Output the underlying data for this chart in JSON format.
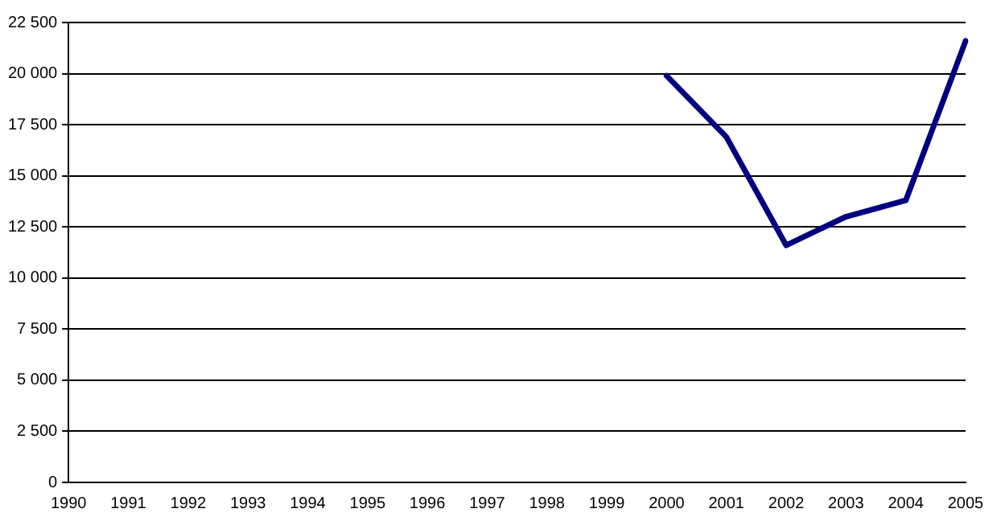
{
  "chart_data": {
    "type": "line",
    "categories": [
      "1990",
      "1991",
      "1992",
      "1993",
      "1994",
      "1995",
      "1996",
      "1997",
      "1998",
      "1999",
      "2000",
      "2001",
      "2002",
      "2003",
      "2004",
      "2005"
    ],
    "series": [
      {
        "color": "#000080",
        "values": [
          null,
          null,
          null,
          null,
          null,
          null,
          null,
          null,
          null,
          null,
          19900,
          16900,
          11600,
          13000,
          13800,
          21600
        ]
      }
    ],
    "ylim": [
      0,
      22500
    ],
    "yticks": [
      {
        "value": 0,
        "label": "0"
      },
      {
        "value": 2500,
        "label": "2 500"
      },
      {
        "value": 5000,
        "label": "5 000"
      },
      {
        "value": 7500,
        "label": "7 500"
      },
      {
        "value": 10000,
        "label": "10 000"
      },
      {
        "value": 12500,
        "label": "12 500"
      },
      {
        "value": 15000,
        "label": "15 000"
      },
      {
        "value": 17500,
        "label": "17 500"
      },
      {
        "value": 20000,
        "label": "20 000"
      },
      {
        "value": 22500,
        "label": "22 500"
      }
    ],
    "grid": "y",
    "legend": false,
    "marker": "none",
    "line_style": "solid"
  }
}
